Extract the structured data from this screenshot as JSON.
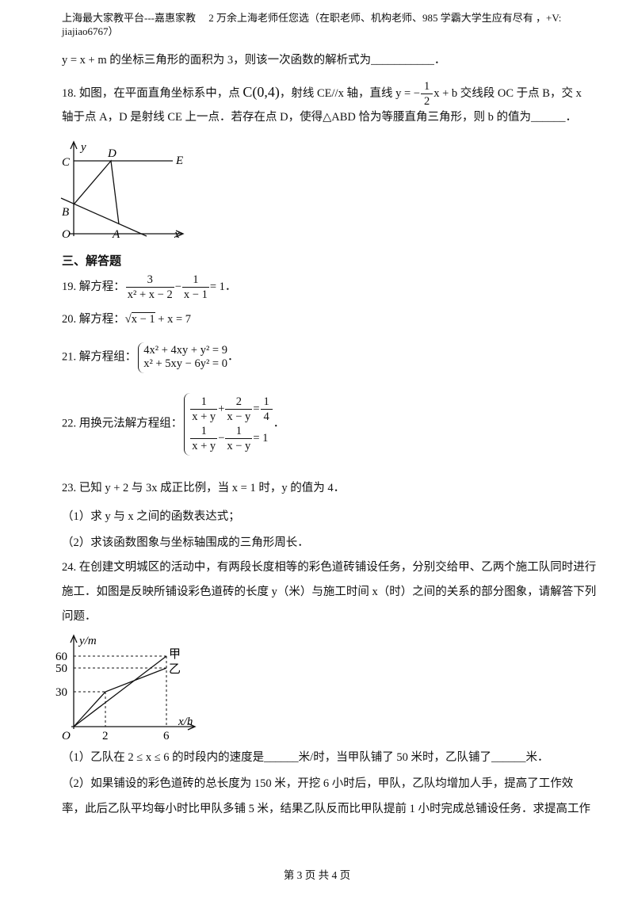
{
  "header": "上海最大家教平台---嘉惠家教　 2 万余上海老师任您选（在职老师、机构老师、985 学霸大学生应有尽有 ，+V: jiajiao6767）",
  "q17_tail": "y = x + m 的坐标三角形的面积为 3，则该一次函数的解析式为___________．",
  "q18": {
    "text_a": "18. 如图，在平面直角坐标系中，点 ",
    "point": "C(0,4)",
    "text_b": "，射线 CE//x 轴，直线 y = −",
    "frac_num": "1",
    "frac_den": "2",
    "text_c": "x + b 交线段 OC 于点 B，交 x",
    "line2": "轴于点 A，D 是射线 CE 上一点．若存在点 D，使得△ABD 恰为等腰直角三角形，则 b 的值为______．",
    "figure_labels": [
      "y",
      "C",
      "D",
      "E",
      "B",
      "O",
      "A",
      "x"
    ]
  },
  "section": "三、解答题",
  "q19": {
    "label": "19. 解方程：",
    "f1_num": "3",
    "f1_den": "x² + x − 2",
    "op": "−",
    "f2_num": "1",
    "f2_den": "x − 1",
    "rhs": "= 1．"
  },
  "q20": {
    "label": "20. 解方程：",
    "sqrt": "√",
    "radicand": "x − 1",
    "rest": "+ x = 7"
  },
  "q21": {
    "label": "21. 解方程组：",
    "eq1": "4x² + 4xy + y² = 9",
    "eq2": "x² + 5xy − 6y² = 0",
    "end": "．"
  },
  "q22": {
    "label": "22. 用换元法解方程组：",
    "row1": [
      "1",
      "x + y",
      "+",
      "2",
      "x − y",
      "=",
      "1",
      "4"
    ],
    "row2": [
      "1",
      "x + y",
      "−",
      "1",
      "x − y",
      "= 1"
    ],
    "end": "．"
  },
  "q23": {
    "text": "23. 已知 y + 2 与 3x 成正比例，当 x = 1 时，y 的值为 4．",
    "part1": "（1）求 y 与 x 之间的函数表达式；",
    "part2": "（2）求该函数图象与坐标轴围成的三角形周长．"
  },
  "q24": {
    "lines": [
      "24. 在创建文明城区的活动中，有两段长度相等的彩色道砖铺设任务，分别交给甲、乙两个施工队同时进行",
      "施工．如图是反映所铺设彩色道砖的长度 y（米）与施工时间 x（时）之间的关系的部分图象，请解答下列",
      "问题．"
    ],
    "figure_labels": {
      "y_axis": "y/m",
      "y60": "60",
      "y50": "50",
      "y30": "30",
      "origin": "O",
      "x2": "2",
      "x6": "6",
      "x_axis": "x/h",
      "jia": "甲",
      "yi": "乙"
    },
    "part1": "（1）乙队在 2 ≤ x ≤ 6 的时段内的速度是______米/时，当甲队铺了 50 米时，乙队铺了______米．",
    "part2": [
      "（2）如果铺设的彩色道砖的总长度为 150 米，开挖 6 小时后，甲队，乙队均增加人手，提高了工作效",
      "率，此后乙队平均每小时比甲队多铺 5 米，结果乙队反而比甲队提前 1 小时完成总铺设任务．求提高工作"
    ]
  },
  "footer": "第 3 页 共 4 页"
}
